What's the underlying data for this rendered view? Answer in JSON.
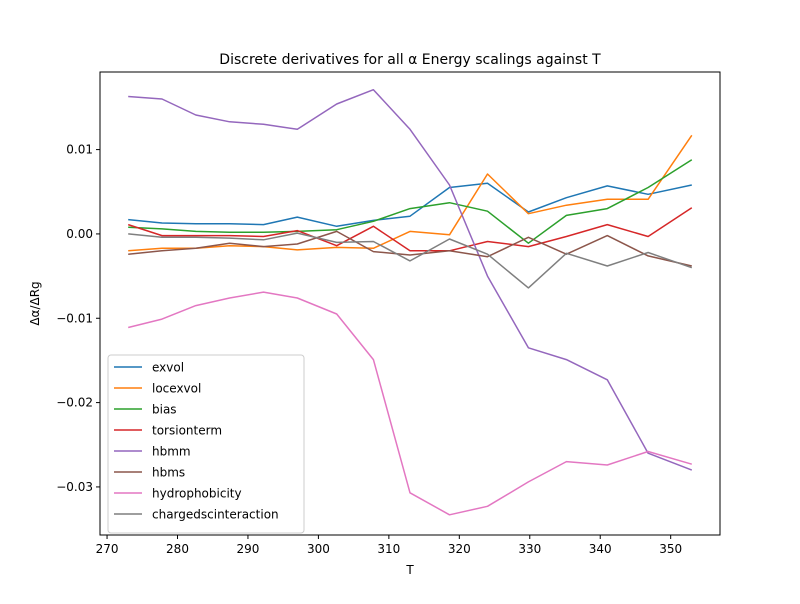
{
  "chart_data": {
    "type": "line",
    "title": "Discrete derivatives for all α Energy scalings against T",
    "xlabel": "T",
    "ylabel": "Δα/ΔRg",
    "xlim": [
      269,
      357
    ],
    "ylim": [
      -0.0357,
      0.0192
    ],
    "xticks": [
      270,
      280,
      290,
      300,
      310,
      320,
      330,
      340,
      350
    ],
    "xtick_labels": [
      "270",
      "280",
      "290",
      "300",
      "310",
      "320",
      "330",
      "340",
      "350"
    ],
    "yticks": [
      -0.03,
      -0.02,
      -0.01,
      0.0,
      0.01
    ],
    "ytick_labels": [
      "−0.03",
      "−0.02",
      "−0.01",
      "0.00",
      "0.01"
    ],
    "grid": false,
    "legend_position": "lower-left",
    "x": [
      273,
      277.8,
      282.6,
      287.4,
      292.2,
      297.0,
      302.6,
      307.8,
      313.0,
      318.6,
      324.0,
      329.8,
      335.2,
      341.0,
      346.8,
      353.0
    ],
    "series": [
      {
        "name": "exvol",
        "color": "#1f77b4",
        "values": [
          0.0017,
          0.0013,
          0.0012,
          0.0012,
          0.0011,
          0.002,
          0.0009,
          0.0016,
          0.0021,
          0.0055,
          0.006,
          0.0026,
          0.0043,
          0.0057,
          0.0047,
          0.0058
        ]
      },
      {
        "name": "locexvol",
        "color": "#ff7f0e",
        "values": [
          -0.002,
          -0.0017,
          -0.0017,
          -0.0014,
          -0.0015,
          -0.0019,
          -0.0016,
          -0.0017,
          0.0003,
          -0.0001,
          0.0071,
          0.0024,
          0.0034,
          0.0041,
          0.0041,
          0.0117
        ]
      },
      {
        "name": "bias",
        "color": "#2ca02c",
        "values": [
          0.0008,
          0.0006,
          0.0003,
          0.0002,
          0.0002,
          0.0003,
          0.0005,
          0.0015,
          0.003,
          0.0037,
          0.0027,
          -0.0011,
          0.0022,
          0.003,
          0.0055,
          0.0088
        ]
      },
      {
        "name": "torsionterm",
        "color": "#d62728",
        "values": [
          0.0011,
          -0.0002,
          -0.0002,
          -0.0002,
          -0.0003,
          0.0004,
          -0.0014,
          0.0009,
          -0.002,
          -0.002,
          -0.0009,
          -0.0015,
          -0.0003,
          0.0011,
          -0.0003,
          0.0031
        ]
      },
      {
        "name": "hbmm",
        "color": "#9467bd",
        "values": [
          0.0163,
          0.016,
          0.0141,
          0.0133,
          0.013,
          0.0124,
          0.0154,
          0.0171,
          0.0124,
          0.0058,
          -0.005,
          -0.0135,
          -0.0149,
          -0.0173,
          -0.026,
          -0.028
        ]
      },
      {
        "name": "hbms",
        "color": "#8c564b",
        "values": [
          -0.0024,
          -0.002,
          -0.0017,
          -0.0011,
          -0.0015,
          -0.0012,
          0.0003,
          -0.0021,
          -0.0025,
          -0.002,
          -0.0027,
          -0.0004,
          -0.0024,
          -0.0002,
          -0.0026,
          -0.0038
        ]
      },
      {
        "name": "hydrophobicity",
        "color": "#e377c2",
        "values": [
          -0.0111,
          -0.0101,
          -0.0085,
          -0.0076,
          -0.0069,
          -0.0076,
          -0.0095,
          -0.0149,
          -0.0307,
          -0.0333,
          -0.0323,
          -0.0294,
          -0.027,
          -0.0274,
          -0.0258,
          -0.0273
        ]
      },
      {
        "name": "chargedscinteraction",
        "color": "#7f7f7f",
        "values": [
          0.0,
          -0.0004,
          -0.0004,
          -0.0005,
          -0.0007,
          0.0001,
          -0.001,
          -0.0009,
          -0.0032,
          -0.0006,
          -0.0024,
          -0.0064,
          -0.0023,
          -0.0038,
          -0.0022,
          -0.004
        ]
      }
    ]
  }
}
